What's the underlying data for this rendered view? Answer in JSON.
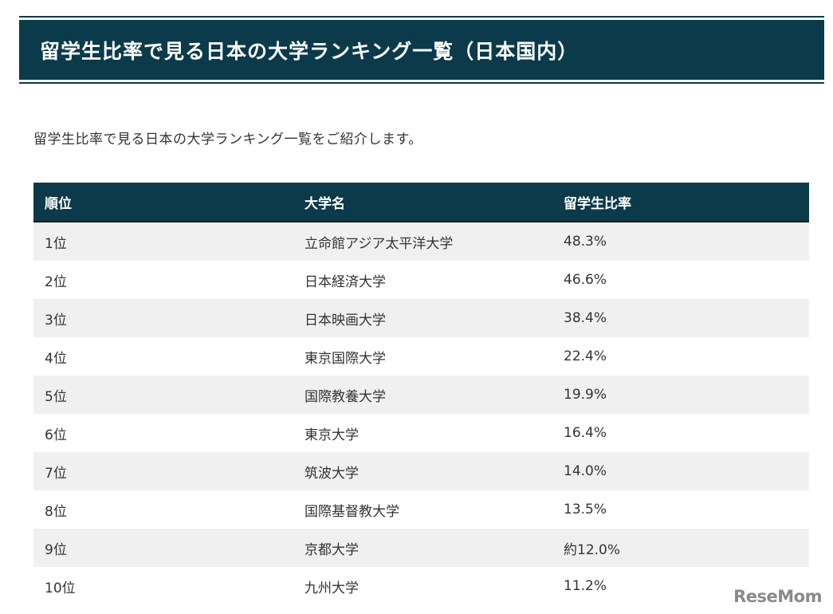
{
  "title": "留学生比率で見る日本の大学ランキング一覧（日本国内）",
  "intro": "留学生比率で見る日本の大学ランキング一覧をご紹介します。",
  "table": {
    "headers": [
      "順位",
      "大学名",
      "留学生比率"
    ],
    "rows": [
      [
        "1位",
        "立命館アジア太平洋大学",
        "48.3%"
      ],
      [
        "2位",
        "日本経済大学",
        "46.6%"
      ],
      [
        "3位",
        "日本映画大学",
        "38.4%"
      ],
      [
        "4位",
        "東京国際大学",
        "22.4%"
      ],
      [
        "5位",
        "国際教養大学",
        "19.9%"
      ],
      [
        "6位",
        "東京大学",
        "16.4%"
      ],
      [
        "7位",
        "筑波大学",
        "14.0%"
      ],
      [
        "8位",
        "国際基督教大学",
        "13.5%"
      ],
      [
        "9位",
        "京都大学",
        "約12.0%"
      ],
      [
        "10位",
        "九州大学",
        "11.2%"
      ]
    ]
  },
  "logo": "ReseMom",
  "colors": {
    "header_bg": "#0b3a4a",
    "row_alt": "#f0f0f0"
  }
}
